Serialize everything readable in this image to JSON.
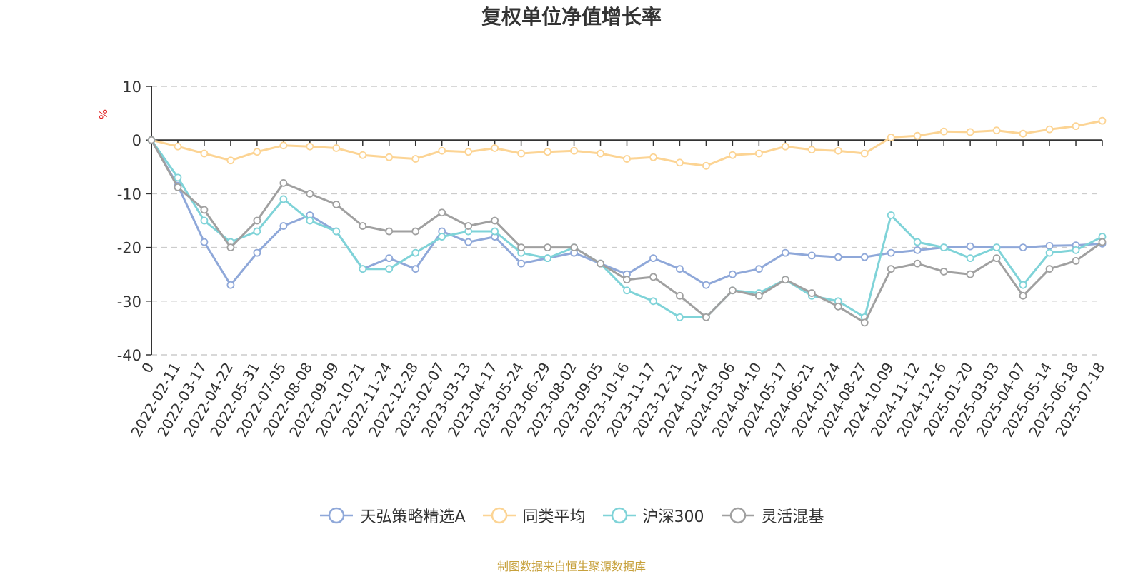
{
  "chart_data": {
    "type": "line",
    "title": "复权单位净值增长率",
    "ylabel": "%",
    "ylim": [
      -40,
      10
    ],
    "yticks": [
      10,
      0,
      -10,
      -20,
      -30,
      -40
    ],
    "grid": true,
    "legend_position": "bottom",
    "x": [
      "0",
      "2022-02-11",
      "2022-03-17",
      "2022-04-22",
      "2022-05-31",
      "2022-07-05",
      "2022-08-08",
      "2022-09-09",
      "2022-10-21",
      "2022-11-24",
      "2022-12-28",
      "2023-02-07",
      "2023-03-13",
      "2023-04-17",
      "2023-05-24",
      "2023-06-29",
      "2023-08-02",
      "2023-09-05",
      "2023-10-16",
      "2023-11-17",
      "2023-12-21",
      "2024-01-24",
      "2024-03-06",
      "2024-04-10",
      "2024-05-17",
      "2024-06-21",
      "2024-07-24",
      "2024-08-27",
      "2024-10-09",
      "2024-11-12",
      "2024-12-16",
      "2025-01-20",
      "2025-03-03",
      "2025-04-07",
      "2025-05-14",
      "2025-06-18",
      "2025-07-18"
    ],
    "series": [
      {
        "name": "天弘策略精选A",
        "color": "#8fa8d9",
        "values": [
          0,
          -8.5,
          -19,
          -27,
          -21,
          -16,
          -14,
          -17,
          -24,
          -22,
          -24,
          -17,
          -19,
          -18,
          -23,
          -22,
          -21,
          -23,
          -25,
          -22,
          -24,
          -27,
          -25,
          -24,
          -21,
          -21.5,
          -21.8,
          -21.8,
          -21,
          -20.5,
          -20,
          -19.8,
          -20,
          -20,
          -19.7,
          -19.6,
          -19.3
        ]
      },
      {
        "name": "同类平均",
        "color": "#fcd494",
        "values": [
          0,
          -1.2,
          -2.5,
          -3.8,
          -2.2,
          -1,
          -1.2,
          -1.5,
          -2.8,
          -3.2,
          -3.5,
          -2,
          -2.2,
          -1.5,
          -2.5,
          -2.2,
          -2.0,
          -2.5,
          -3.5,
          -3.2,
          -4.2,
          -4.8,
          -2.8,
          -2.5,
          -1.2,
          -1.8,
          -2,
          -2.5,
          0.5,
          0.8,
          1.6,
          1.5,
          1.8,
          1.2,
          2.0,
          2.6,
          3.6
        ]
      },
      {
        "name": "沪深300",
        "color": "#7fd3d8",
        "values": [
          0,
          -7,
          -15,
          -19,
          -17,
          -11,
          -15,
          -17,
          -24,
          -24,
          -21,
          -18,
          -17,
          -17,
          -21,
          -22,
          -20,
          -23,
          -28,
          -30,
          -33,
          -33,
          -28,
          -28.5,
          -26,
          -29,
          -30,
          -33,
          -14,
          -19,
          -20,
          -22,
          -20,
          -27,
          -21,
          -20.5,
          -18
        ]
      },
      {
        "name": "灵活混基",
        "color": "#a0a0a0",
        "values": [
          0,
          -8.8,
          -13,
          -20,
          -15,
          -8,
          -10,
          -12,
          -16,
          -17,
          -17,
          -13.5,
          -16,
          -15,
          -20,
          -20,
          -20,
          -23,
          -26,
          -25.5,
          -29,
          -33,
          -28,
          -29,
          -26,
          -28.5,
          -31,
          -34,
          -24,
          -23,
          -24.5,
          -25,
          -22,
          -29,
          -24,
          -22.5,
          -19
        ]
      }
    ]
  },
  "legend_items": [
    {
      "label": "天弘策略精选A",
      "color": "#8fa8d9"
    },
    {
      "label": "同类平均",
      "color": "#fcd494"
    },
    {
      "label": "沪深300",
      "color": "#7fd3d8"
    },
    {
      "label": "灵活混基",
      "color": "#a0a0a0"
    }
  ],
  "footer": {
    "source": "制图数据来自恒生聚源数据库"
  }
}
